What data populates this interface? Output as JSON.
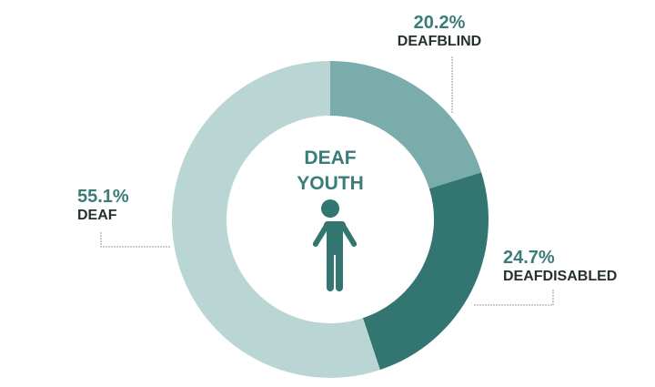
{
  "chart_data": {
    "type": "pie",
    "variant": "donut",
    "center_label": [
      "DEAF",
      "YOUTH"
    ],
    "center_icon": "person-icon",
    "categories": [
      "DEAFBLIND",
      "DEAFDISABLED",
      "DEAF"
    ],
    "values": [
      20.2,
      24.7,
      55.1
    ],
    "value_labels": [
      "20.2%",
      "24.7%",
      "55.1%"
    ],
    "unit": "%",
    "colors": [
      "#7aacab",
      "#337671",
      "#b9d5d4"
    ],
    "label_color": "#3a7d78",
    "name_color": "#25302f"
  }
}
